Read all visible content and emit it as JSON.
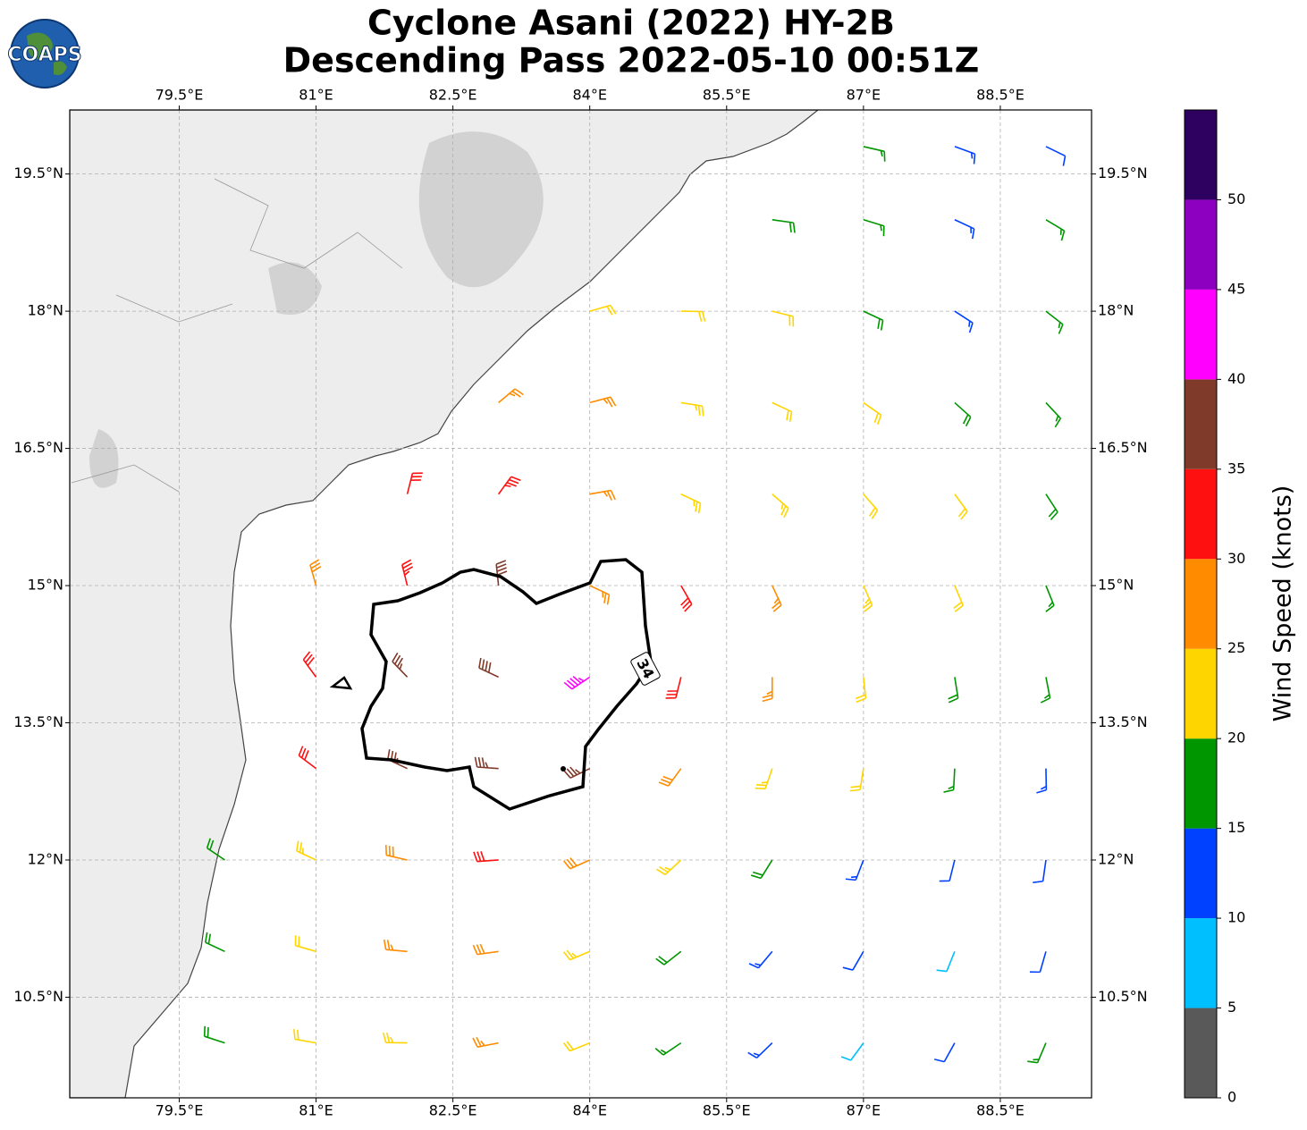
{
  "header": {
    "title_lines": [
      "Cyclone Asani (2022) HY-2B",
      "Descending Pass 2022-05-10 00:51Z"
    ],
    "logo": "COAPS"
  },
  "map": {
    "xlim": [
      78.3,
      89.5
    ],
    "ylim": [
      9.4,
      20.2
    ],
    "xticks": [
      {
        "value": 79.5,
        "label": "79.5°E"
      },
      {
        "value": 81,
        "label": "81°E"
      },
      {
        "value": 82.5,
        "label": "82.5°E"
      },
      {
        "value": 84,
        "label": "84°E"
      },
      {
        "value": 85.5,
        "label": "85.5°E"
      },
      {
        "value": 87,
        "label": "87°E"
      },
      {
        "value": 88.5,
        "label": "88.5°E"
      }
    ],
    "yticks": [
      {
        "value": 10.5,
        "label": "10.5°N"
      },
      {
        "value": 12,
        "label": "12°N"
      },
      {
        "value": 13.5,
        "label": "13.5°N"
      },
      {
        "value": 15,
        "label": "15°N"
      },
      {
        "value": 16.5,
        "label": "16.5°N"
      },
      {
        "value": 18,
        "label": "18°N"
      },
      {
        "value": 19.5,
        "label": "19.5°N"
      }
    ],
    "grid": true,
    "contour_label": "34"
  },
  "barbs": {
    "lon": [
      87,
      88,
      89,
      86,
      87,
      88,
      89,
      84,
      85,
      86,
      87,
      88,
      89,
      83,
      84,
      85,
      86,
      87,
      88,
      89,
      82,
      83,
      84,
      85,
      86,
      87,
      88,
      89,
      81,
      82,
      83,
      84,
      85,
      86,
      87,
      88,
      89,
      81,
      82,
      83,
      84,
      85,
      86,
      87,
      88,
      89,
      81,
      82,
      83,
      84,
      85,
      86,
      87,
      88,
      89,
      80,
      81,
      82,
      83,
      84,
      85,
      86,
      87,
      88,
      89,
      80,
      81,
      82,
      83,
      84,
      85,
      86,
      87,
      88,
      89,
      80,
      81,
      82,
      83,
      84,
      85,
      86,
      87,
      88,
      89
    ],
    "lat": [
      19.8,
      19.8,
      19.8,
      19,
      19,
      19,
      19,
      18,
      18,
      18,
      18,
      18,
      18,
      17,
      17,
      17,
      17,
      17,
      17,
      17,
      16,
      16,
      16,
      16,
      16,
      16,
      16,
      16,
      15,
      15,
      15,
      15,
      15,
      15,
      15,
      15,
      15,
      14,
      14,
      14,
      14,
      14,
      14,
      14,
      14,
      14,
      13,
      13,
      13,
      13,
      13,
      13,
      13,
      13,
      13,
      12,
      12,
      12,
      12,
      12,
      12,
      12,
      12,
      12,
      12,
      11,
      11,
      11,
      11,
      11,
      11,
      11,
      11,
      11,
      11,
      10,
      10,
      10,
      10,
      10,
      10,
      10,
      10,
      10,
      10
    ],
    "speed": [
      15,
      13,
      12,
      18,
      17,
      14,
      16,
      22,
      22,
      21,
      18,
      14,
      17,
      27,
      26,
      23,
      22,
      21,
      18,
      17,
      32,
      33,
      27,
      24,
      23,
      22,
      22,
      18,
      29,
      33,
      38,
      27,
      31,
      27,
      23,
      22,
      17,
      32,
      37,
      38,
      43,
      31,
      26,
      22,
      18,
      17,
      32,
      37,
      37,
      37,
      28,
      24,
      21,
      17,
      14,
      18,
      24,
      28,
      32,
      28,
      24,
      18,
      13,
      12,
      12,
      18,
      22,
      26,
      29,
      23,
      18,
      13,
      12,
      8,
      12,
      18,
      22,
      24,
      26,
      22,
      17,
      13,
      8,
      12,
      17
    ],
    "direction": [
      103,
      110,
      116,
      98,
      107,
      115,
      121,
      74,
      91,
      104,
      115,
      123,
      128,
      50,
      75,
      99,
      115,
      125,
      132,
      137,
      14,
      36,
      80,
      115,
      131,
      139,
      144,
      147,
      344,
      346,
      354,
      115,
      150,
      155,
      156,
      157,
      158,
      324,
      316,
      295,
      236,
      194,
      180,
      174,
      171,
      169,
      307,
      295,
      274,
      244,
      216,
      199,
      189,
      183,
      179,
      304,
      295,
      283,
      266,
      246,
      227,
      212,
      201,
      194,
      188,
      295,
      286,
      275,
      262,
      247,
      232,
      220,
      210,
      202,
      196,
      288,
      280,
      271,
      259,
      248,
      236,
      226,
      216,
      209,
      203
    ]
  },
  "colorbar": {
    "label": "Wind Speed (knots)",
    "bounds": [
      0,
      5,
      10,
      15,
      20,
      25,
      30,
      35,
      40,
      45,
      50,
      55
    ],
    "colors": [
      "#595959",
      "#00bfff",
      "#0040ff",
      "#009600",
      "#ffd500",
      "#ff8c00",
      "#ff1010",
      "#7f3a2a",
      "#ff00ff",
      "#8e00c0",
      "#2e0060"
    ],
    "ylim": [
      0,
      55
    ],
    "ticks": [
      0,
      5,
      10,
      15,
      20,
      25,
      30,
      35,
      40,
      45,
      50
    ]
  }
}
